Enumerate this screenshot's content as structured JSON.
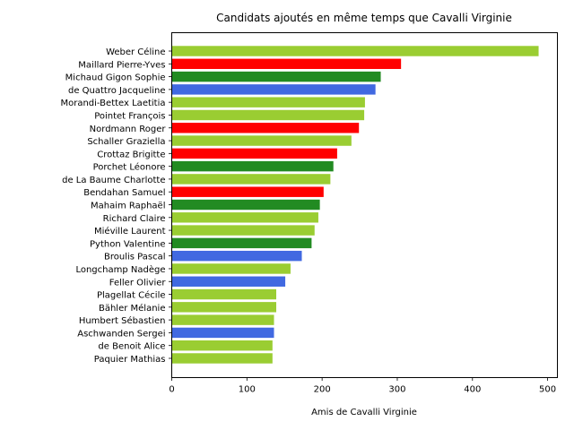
{
  "chart_data": {
    "type": "bar",
    "orientation": "horizontal",
    "title": "Candidats ajoutés en même temps que Cavalli Virginie",
    "xlabel": "Amis de Cavalli Virginie",
    "ylabel": "",
    "xlim": [
      0,
      513
    ],
    "xticks": [
      0,
      100,
      200,
      300,
      400,
      500
    ],
    "grid": false,
    "categories": [
      "Weber Céline",
      "Maillard Pierre-Yves",
      "Michaud Gigon Sophie",
      "de Quattro Jacqueline",
      "Morandi-Bettex Laetitia",
      "Pointet François",
      "Nordmann Roger",
      "Schaller Graziella",
      "Crottaz Brigitte",
      "Porchet Léonore",
      "de La Baume Charlotte",
      "Bendahan Samuel",
      "Mahaim Raphaël",
      "Richard Claire",
      "Miéville Laurent",
      "Python Valentine",
      "Broulis Pascal",
      "Longchamp Nadège",
      "Feller Olivier",
      "Plagellat Cécile",
      "Bähler Mélanie",
      "Humbert Sébastien",
      "Aschwanden Sergei",
      "de Benoit Alice",
      "Paquier Mathias"
    ],
    "values": [
      488,
      305,
      278,
      271,
      257,
      256,
      249,
      239,
      220,
      215,
      211,
      202,
      197,
      195,
      190,
      186,
      173,
      158,
      151,
      139,
      139,
      136,
      136,
      134,
      134
    ],
    "colors": [
      "#9acd32",
      "#ff0000",
      "#228b22",
      "#4169e1",
      "#9acd32",
      "#9acd32",
      "#ff0000",
      "#9acd32",
      "#ff0000",
      "#228b22",
      "#9acd32",
      "#ff0000",
      "#228b22",
      "#9acd32",
      "#9acd32",
      "#228b22",
      "#4169e1",
      "#9acd32",
      "#4169e1",
      "#9acd32",
      "#9acd32",
      "#9acd32",
      "#4169e1",
      "#9acd32",
      "#9acd32"
    ]
  }
}
